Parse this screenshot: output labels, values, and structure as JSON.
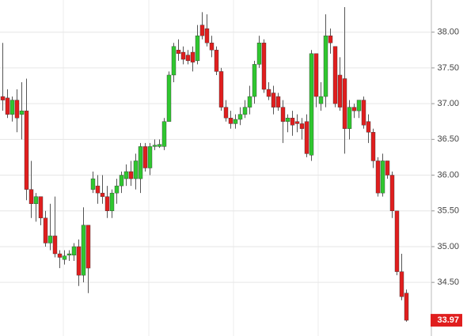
{
  "chart_data": {
    "type": "candlestick",
    "open": [
      37.1,
      37.08,
      36.85,
      37.05,
      36.85,
      36.9,
      35.8,
      35.6,
      35.7,
      35.4,
      35.05,
      35.15,
      34.9,
      34.82,
      34.88,
      34.88,
      35.0,
      34.6,
      35.3,
      35.8,
      35.85,
      35.75,
      35.7,
      35.5,
      35.75,
      35.85,
      35.95,
      36.05,
      35.95,
      35.95,
      36.4,
      36.1,
      36.4,
      36.4,
      36.4,
      36.75,
      37.4,
      37.75,
      37.72,
      37.68,
      37.72,
      37.6,
      38.1,
      38.05,
      37.85,
      37.75,
      37.45,
      36.95,
      36.8,
      36.72,
      36.78,
      36.85,
      36.95,
      37.1,
      37.55,
      37.85,
      37.2,
      37.15,
      37.1,
      36.95,
      36.75,
      36.8,
      36.75,
      36.72,
      36.75,
      36.28,
      37.7,
      37.0,
      37.1,
      37.95,
      37.8,
      37.4,
      37.35,
      36.65,
      36.95,
      36.9,
      37.05,
      36.75,
      36.6,
      36.2,
      35.75,
      36.2,
      36.0,
      35.5,
      34.65,
      34.35
    ],
    "high": [
      37.85,
      37.2,
      37.1,
      37.2,
      37.3,
      37.35,
      36.2,
      35.75,
      35.7,
      35.5,
      35.6,
      35.7,
      34.95,
      34.95,
      34.95,
      35.05,
      35.1,
      35.55,
      35.3,
      36.05,
      36.0,
      36.0,
      35.85,
      35.8,
      35.95,
      36.05,
      36.15,
      36.2,
      36.3,
      36.45,
      36.45,
      36.45,
      36.5,
      36.5,
      36.8,
      37.45,
      37.85,
      37.9,
      37.8,
      37.75,
      37.8,
      38.1,
      38.28,
      38.25,
      37.95,
      37.8,
      37.5,
      37.05,
      36.9,
      36.85,
      36.95,
      37.05,
      37.25,
      37.6,
      37.95,
      37.9,
      37.3,
      37.25,
      37.15,
      37.05,
      36.85,
      36.9,
      36.85,
      36.8,
      36.85,
      37.75,
      37.7,
      37.3,
      38.25,
      38.05,
      37.8,
      37.65,
      38.35,
      37.05,
      37.0,
      37.05,
      37.1,
      36.85,
      36.65,
      36.25,
      36.3,
      36.2,
      36.05,
      35.5,
      34.9,
      34.4
    ],
    "low": [
      36.9,
      36.8,
      36.75,
      36.6,
      36.5,
      35.65,
      35.4,
      35.35,
      35.3,
      35.0,
      34.95,
      34.85,
      34.7,
      34.75,
      34.8,
      34.8,
      34.45,
      34.5,
      34.35,
      35.75,
      35.6,
      35.6,
      35.4,
      35.4,
      35.6,
      35.75,
      35.85,
      35.85,
      35.8,
      35.75,
      36.05,
      36.0,
      36.35,
      36.38,
      36.35,
      36.75,
      37.3,
      37.6,
      37.55,
      37.55,
      37.45,
      37.55,
      37.9,
      37.8,
      37.65,
      37.4,
      36.9,
      36.75,
      36.65,
      36.65,
      36.7,
      36.8,
      36.85,
      37.0,
      37.5,
      37.15,
      37.05,
      36.85,
      36.9,
      36.45,
      36.6,
      36.55,
      36.6,
      36.5,
      36.25,
      36.2,
      36.95,
      36.9,
      36.95,
      37.7,
      36.95,
      36.9,
      36.3,
      36.5,
      36.8,
      36.8,
      36.65,
      36.45,
      36.1,
      35.7,
      35.7,
      35.95,
      35.4,
      34.6,
      34.25,
      33.95
    ],
    "close": [
      37.05,
      36.85,
      37.05,
      36.8,
      36.9,
      35.8,
      35.6,
      35.7,
      35.4,
      35.05,
      35.15,
      34.9,
      34.85,
      34.87,
      34.9,
      35.0,
      34.6,
      35.3,
      34.7,
      35.95,
      35.75,
      35.7,
      35.5,
      35.75,
      35.85,
      36.0,
      36.05,
      35.95,
      36.2,
      36.4,
      36.1,
      36.4,
      36.42,
      36.43,
      36.75,
      37.4,
      37.8,
      37.7,
      37.62,
      37.6,
      37.58,
      37.95,
      37.95,
      37.85,
      37.75,
      37.45,
      36.95,
      36.8,
      36.72,
      36.78,
      36.85,
      36.95,
      37.1,
      37.55,
      37.85,
      37.2,
      37.1,
      36.95,
      36.95,
      36.75,
      36.8,
      36.7,
      36.72,
      36.65,
      36.3,
      37.7,
      37.1,
      37.1,
      37.95,
      37.85,
      37.0,
      36.95,
      36.65,
      36.95,
      36.9,
      37.05,
      36.7,
      36.6,
      36.2,
      35.75,
      36.2,
      36.0,
      35.5,
      34.65,
      34.3,
      33.97
    ],
    "up_color": "#2fc72f",
    "down_color": "#e01e1e",
    "ylim": [
      33.75,
      38.45
    ],
    "yticks": [
      {
        "value": 34.5,
        "label": "34.50"
      },
      {
        "value": 35,
        "label": "35.00"
      },
      {
        "value": 35.5,
        "label": "35.50"
      },
      {
        "value": 36,
        "label": "36.00"
      },
      {
        "value": 36.5,
        "label": "36.50"
      },
      {
        "value": 37,
        "label": "37.00"
      },
      {
        "value": 37.5,
        "label": "37.50"
      },
      {
        "value": 38,
        "label": "38.00"
      }
    ],
    "last_price": 33.97,
    "grid": true
  }
}
